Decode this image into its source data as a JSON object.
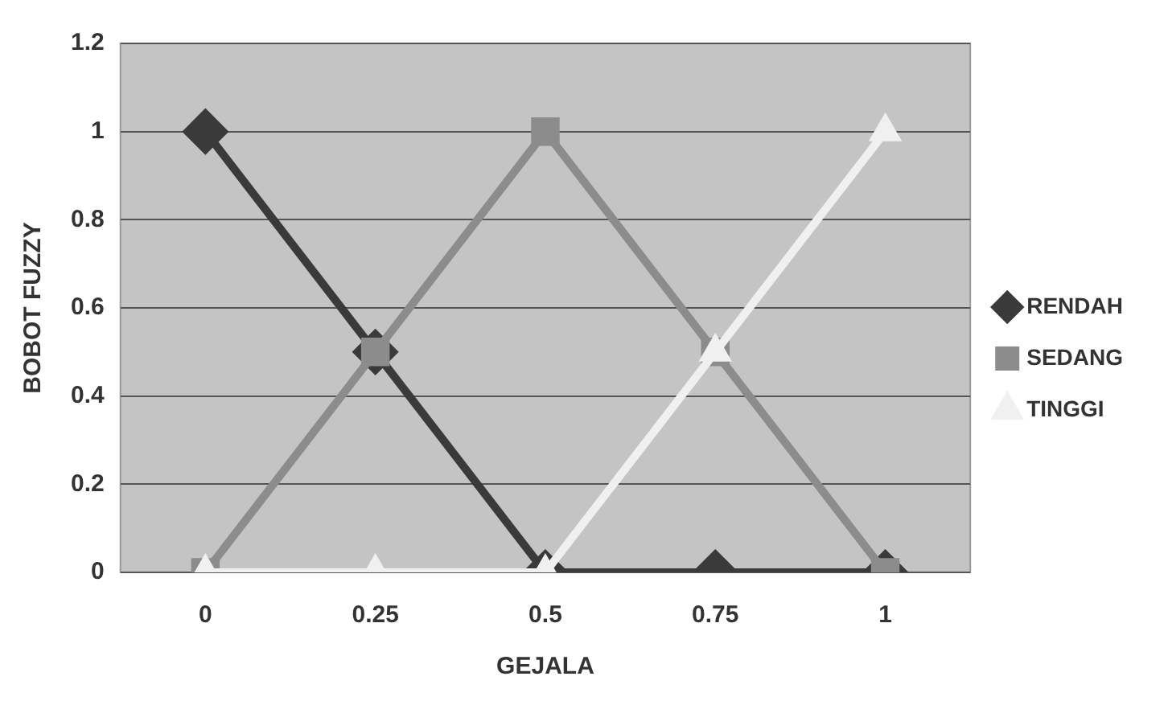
{
  "chart_data": {
    "type": "line",
    "xlabel": "GEJALA",
    "ylabel": "BOBOT FUZZY",
    "categories": [
      "0",
      "0.25",
      "0.5",
      "0.75",
      "1"
    ],
    "series": [
      {
        "name": "RENDAH",
        "color": "#3a3a3a",
        "marker": "diamond",
        "values": [
          1,
          0.5,
          0,
          0,
          0
        ]
      },
      {
        "name": "SEDANG",
        "color": "#8c8c8c",
        "marker": "square",
        "values": [
          0,
          0.5,
          1,
          0.5,
          0
        ]
      },
      {
        "name": "TINGGI",
        "color": "#f0f0f0",
        "marker": "triangle",
        "values": [
          0,
          0,
          0,
          0.5,
          1
        ]
      }
    ],
    "ylim": [
      0,
      1.2
    ],
    "yticks": [
      0,
      0.2,
      0.4,
      0.6,
      0.8,
      1,
      1.2
    ],
    "grid": "y",
    "legend": "right"
  }
}
